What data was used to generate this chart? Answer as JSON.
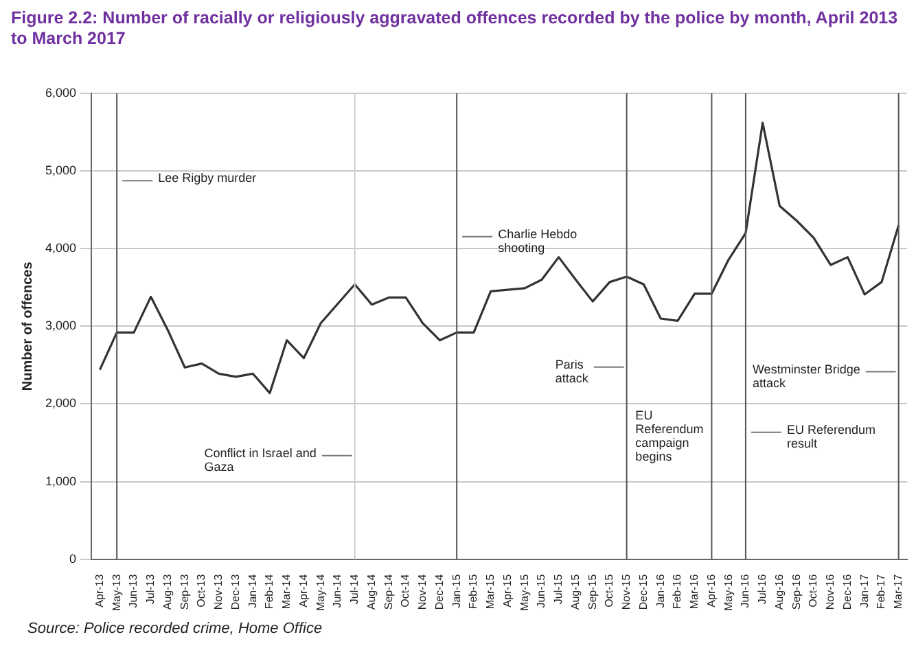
{
  "chart_data": {
    "type": "line",
    "title": "Figure 2.2: Number of racially or religiously aggravated offences recorded by the police by month, April 2013 to March 2017",
    "ylabel": "Number of offences",
    "categories": [
      "Apr-13",
      "May-13",
      "Jun-13",
      "Jul-13",
      "Aug-13",
      "Sep-13",
      "Oct-13",
      "Nov-13",
      "Dec-13",
      "Jan-14",
      "Feb-14",
      "Mar-14",
      "Apr-14",
      "May-14",
      "Jun-14",
      "Jul-14",
      "Aug-14",
      "Sep-14",
      "Oct-14",
      "Nov-14",
      "Dec-14",
      "Jan-15",
      "Feb-15",
      "Mar-15",
      "Apr-15",
      "May-15",
      "Jun-15",
      "Jul-15",
      "Aug-15",
      "Sep-15",
      "Oct-15",
      "Nov-15",
      "Dec-15",
      "Jan-16",
      "Feb-16",
      "Mar-16",
      "Apr-16",
      "May-16",
      "Jun-16",
      "Jul-16",
      "Aug-16",
      "Sep-16",
      "Oct-16",
      "Nov-16",
      "Dec-16",
      "Jan-17",
      "Feb-17",
      "Mar-17"
    ],
    "series": [
      {
        "color": "#333333",
        "values": [
          2440,
          2920,
          2920,
          3380,
          2950,
          2470,
          2520,
          2390,
          2350,
          2390,
          2140,
          2820,
          2590,
          3040,
          3290,
          3540,
          3280,
          3370,
          3370,
          3040,
          2820,
          2920,
          2920,
          3450,
          3470,
          3490,
          3600,
          3890,
          3600,
          3320,
          3570,
          3640,
          3540,
          3100,
          3070,
          3420,
          3420,
          3860,
          4200,
          5620,
          4550,
          4360,
          4140,
          3790,
          3890,
          3410,
          3570,
          4300
        ]
      }
    ],
    "ylim": [
      0,
      6000
    ],
    "yticks": [
      {
        "value": 0,
        "label": "0"
      },
      {
        "value": 1000,
        "label": "1,000"
      },
      {
        "value": 2000,
        "label": "2,000"
      },
      {
        "value": 3000,
        "label": "3,000"
      },
      {
        "value": 4000,
        "label": "4,000"
      },
      {
        "value": 5000,
        "label": "5,000"
      },
      {
        "value": 6000,
        "label": "6,000"
      }
    ],
    "grid": "y",
    "legend": false,
    "marker": "none",
    "ref_lines": [
      {
        "axis": "x",
        "value": "May-13",
        "label": "Lee Rigby murder",
        "color": "#555555"
      },
      {
        "axis": "x",
        "value": "Jul-14",
        "label": "Conflict in Israel and Gaza",
        "color": "#cccccc"
      },
      {
        "axis": "x",
        "value": "Jan-15",
        "label": "Charlie Hebdo shooting",
        "color": "#555555"
      },
      {
        "axis": "x",
        "value": "Nov-15",
        "label": "Paris attack",
        "color": "#555555"
      },
      {
        "axis": "x",
        "value": "Apr-16",
        "label": "EU Referendum campaign begins",
        "color": "#555555"
      },
      {
        "axis": "x",
        "value": "Jun-16",
        "label": "EU Referendum result",
        "color": "#555555"
      },
      {
        "axis": "x",
        "value": "Mar-17",
        "label": "Westminster Bridge attack",
        "color": "#555555"
      }
    ],
    "annotations": [
      "Source: Police recorded crime, Home Office"
    ]
  }
}
